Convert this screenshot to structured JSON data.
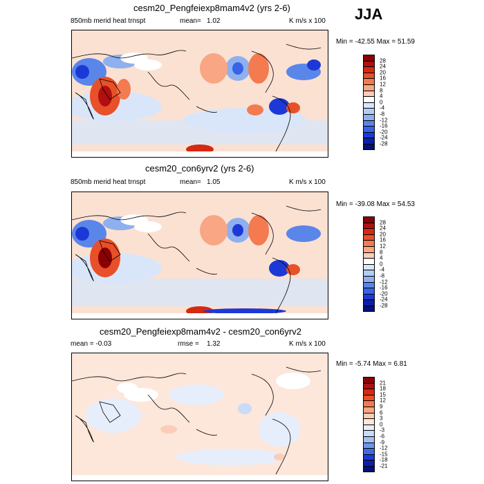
{
  "season": "JJA",
  "panels": [
    {
      "title": "cesm20_Pengfeiexp8mam4v2 (yrs 2-6)",
      "left_label": "850mb merid heat trnspt",
      "mean_label": "mean=",
      "mean_value": "1.02",
      "units": "K m/s x 100",
      "minmax": "Min = -42.55 Max =  51.59",
      "colorbar_labels": [
        "28",
        "24",
        "20",
        "16",
        "12",
        "8",
        "4",
        "0",
        "-4",
        "-8",
        "-12",
        "-16",
        "-20",
        "-24",
        "-28"
      ]
    },
    {
      "title": "cesm20_con6yrv2 (yrs 2-6)",
      "left_label": "850mb merid heat trnspt",
      "mean_label": "mean=",
      "mean_value": "1.05",
      "units": "K m/s x 100",
      "minmax": "Min = -39.08 Max =  54.53",
      "colorbar_labels": [
        "28",
        "24",
        "20",
        "16",
        "12",
        "8",
        "4",
        "0",
        "-4",
        "-8",
        "-12",
        "-16",
        "-20",
        "-24",
        "-28"
      ]
    },
    {
      "title": "cesm20_Pengfeiexp8mam4v2 - cesm20_con6yrv2",
      "left_label": "mean =  -0.03",
      "mean_label": "rmse =",
      "mean_value": "1.32",
      "units": "K m/s x 100",
      "minmax": "Min =  -5.74 Max =   6.81",
      "colorbar_labels": [
        "21",
        "18",
        "15",
        "12",
        "9",
        "6",
        "3",
        "0",
        "-3",
        "-6",
        "-9",
        "-12",
        "-15",
        "-18",
        "-21"
      ]
    }
  ],
  "colors": {
    "cb_main": [
      "#8b0000",
      "#b01010",
      "#d42a12",
      "#e8502a",
      "#f47a50",
      "#f8a684",
      "#fbcdb8",
      "#ffffff",
      "#d9e6fa",
      "#b2cdf5",
      "#8fb0ef",
      "#5a86ea",
      "#3763e8",
      "#1c39d8",
      "#0d1fa8",
      "#06107a"
    ],
    "cb_diff": [
      "#8b0000",
      "#b01010",
      "#d42a12",
      "#e8502a",
      "#f47a50",
      "#f8a684",
      "#fbcdb8",
      "#fde6da",
      "#e6eefc",
      "#c9dbf7",
      "#a4c0f1",
      "#6d95ec",
      "#3d6be8",
      "#1c39d8",
      "#0d1fa8",
      "#06107a"
    ]
  }
}
